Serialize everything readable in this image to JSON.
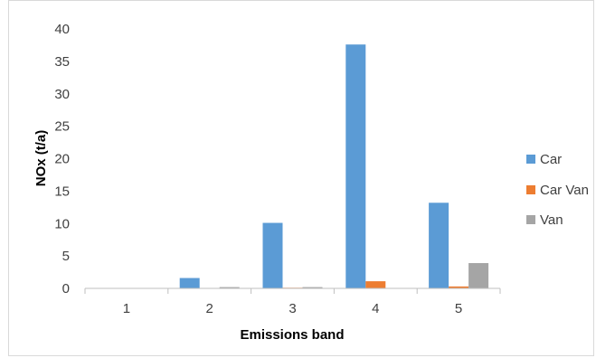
{
  "chart_data": {
    "type": "bar",
    "title": "",
    "xlabel": "Emissions band",
    "ylabel": "NOx (t/a)",
    "categories": [
      "1",
      "2",
      "3",
      "4",
      "5"
    ],
    "ylim": [
      0,
      40
    ],
    "yticks": [
      0,
      5,
      10,
      15,
      20,
      25,
      30,
      35,
      40
    ],
    "grid": false,
    "legend_position": "right",
    "series": [
      {
        "name": "Car",
        "color": "#5b9bd5",
        "values": [
          0,
          1.6,
          10.1,
          37.6,
          13.2
        ]
      },
      {
        "name": "Car Van",
        "color": "#ed7d31",
        "values": [
          0,
          0,
          0.1,
          1.1,
          0.3
        ]
      },
      {
        "name": "Van",
        "color": "#a5a5a5",
        "values": [
          0,
          0.2,
          0.2,
          0,
          3.9
        ]
      }
    ]
  }
}
